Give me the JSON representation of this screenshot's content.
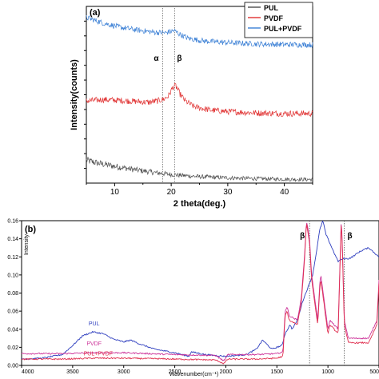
{
  "chart_data": [
    {
      "panel_label": "(a)",
      "type": "line",
      "xlabel": "2 theta(deg.)",
      "ylabel": "Intensity(counts)",
      "xlim": [
        5,
        45
      ],
      "x_ticks": [
        10,
        20,
        30,
        40
      ],
      "y_ticks_labeled": false,
      "legend": {
        "placement": "top-right"
      },
      "annotations": [
        {
          "text": "α",
          "x": 18.5
        },
        {
          "text": "β",
          "x": 20.6
        }
      ],
      "series": [
        {
          "name": "PUL",
          "color": "#4d4d4d",
          "x": [
            5,
            7,
            9,
            11,
            13,
            15,
            17,
            19,
            21,
            23,
            25,
            30,
            35,
            40,
            45
          ],
          "y": [
            0.82,
            0.72,
            0.64,
            0.57,
            0.5,
            0.44,
            0.38,
            0.33,
            0.29,
            0.26,
            0.23,
            0.19,
            0.16,
            0.14,
            0.13
          ]
        },
        {
          "name": "PVDF",
          "color": "#e03030",
          "x": [
            5,
            8,
            11,
            14,
            16,
            17.5,
            18.5,
            19.5,
            20.3,
            20.8,
            21.5,
            22.5,
            24,
            27,
            30,
            35,
            40,
            45
          ],
          "y": [
            2.95,
            3.0,
            2.97,
            2.93,
            2.9,
            2.95,
            3.0,
            3.12,
            3.45,
            3.5,
            3.22,
            2.95,
            2.75,
            2.62,
            2.57,
            2.52,
            2.5,
            2.5
          ]
        },
        {
          "name": "PUL+PVDF",
          "color": "#3a7fd5",
          "x": [
            5,
            8,
            11,
            14,
            17,
            19,
            20.5,
            21.5,
            23,
            26,
            30,
            35,
            40,
            45
          ],
          "y": [
            5.95,
            5.75,
            5.6,
            5.5,
            5.42,
            5.4,
            5.48,
            5.35,
            5.2,
            5.1,
            5.05,
            5.0,
            4.98,
            4.97
          ]
        }
      ]
    },
    {
      "panel_label": "(b)",
      "type": "line",
      "xlabel": "Wavenumber(cm⁻¹)",
      "ylabel": "Intensity",
      "xlim": [
        4000,
        500
      ],
      "ylim": [
        0,
        0.16
      ],
      "x_ticks": [
        4000,
        3500,
        3000,
        2500,
        2000,
        1500,
        1000,
        500
      ],
      "x_tick_labels": [
        "4000",
        "3500",
        "3000",
        "2500",
        "2000",
        "1500",
        "1000",
        "500"
      ],
      "y_ticks": [
        0,
        0.02,
        0.04,
        0.06,
        0.08,
        0.1,
        0.12,
        0.14,
        0.16
      ],
      "y_tick_labels": [
        "0.00",
        "0.02",
        "0.04",
        "0.06",
        "0.08",
        "0.10",
        "0.12",
        "0.14",
        "0.16"
      ],
      "annotations": [
        {
          "text": "β",
          "x": 1180
        },
        {
          "text": "β",
          "x": 840
        },
        {
          "text": "PUL",
          "x": 3290,
          "y": 0.044,
          "color": "#2f3fbf"
        },
        {
          "text": "PVDF",
          "x": 3290,
          "y": 0.022,
          "color": "#cc3399"
        },
        {
          "text": "PUL+PVDF",
          "x": 3250,
          "y": 0.011,
          "color": "#e03050"
        }
      ],
      "series": [
        {
          "name": "PUL",
          "color": "#2f3fbf",
          "x": [
            4000,
            3800,
            3600,
            3500,
            3400,
            3300,
            3200,
            3100,
            3000,
            2930,
            2850,
            2700,
            2500,
            2360,
            2340,
            2200,
            2100,
            2000,
            1900,
            1800,
            1700,
            1640,
            1550,
            1450,
            1420,
            1370,
            1350,
            1300,
            1250,
            1200,
            1150,
            1120,
            1080,
            1050,
            1020,
            1000,
            930,
            900,
            850,
            800,
            760,
            700,
            650,
            600,
            550,
            500
          ],
          "y": [
            0.007,
            0.008,
            0.012,
            0.022,
            0.033,
            0.037,
            0.035,
            0.029,
            0.026,
            0.028,
            0.024,
            0.018,
            0.014,
            0.01,
            0.015,
            0.012,
            0.011,
            0.01,
            0.011,
            0.012,
            0.018,
            0.028,
            0.018,
            0.022,
            0.035,
            0.045,
            0.04,
            0.05,
            0.07,
            0.085,
            0.1,
            0.12,
            0.15,
            0.16,
            0.145,
            0.14,
            0.122,
            0.115,
            0.118,
            0.118,
            0.12,
            0.125,
            0.128,
            0.13,
            0.125,
            0.12
          ]
        },
        {
          "name": "PVDF",
          "color": "#cc3399",
          "x": [
            4000,
            3600,
            3300,
            3000,
            2500,
            2100,
            2020,
            1980,
            1900,
            1700,
            1500,
            1440,
            1420,
            1400,
            1380,
            1300,
            1260,
            1230,
            1210,
            1180,
            1160,
            1100,
            1080,
            1070,
            1000,
            980,
            900,
            880,
            870,
            860,
            840,
            800,
            760,
            700,
            600,
            520,
            500
          ],
          "y": [
            0.013,
            0.013,
            0.014,
            0.014,
            0.012,
            0.011,
            0.005,
            0.012,
            0.012,
            0.012,
            0.013,
            0.015,
            0.06,
            0.065,
            0.055,
            0.05,
            0.075,
            0.12,
            0.16,
            0.14,
            0.1,
            0.05,
            0.09,
            0.1,
            0.04,
            0.05,
            0.04,
            0.12,
            0.16,
            0.14,
            0.05,
            0.03,
            0.03,
            0.03,
            0.03,
            0.05,
            0.095
          ]
        },
        {
          "name": "PUL+PVDF",
          "color": "#e03050",
          "x": [
            4000,
            3600,
            3300,
            3000,
            2500,
            2100,
            2020,
            1980,
            1900,
            1700,
            1500,
            1440,
            1420,
            1400,
            1380,
            1300,
            1260,
            1230,
            1210,
            1180,
            1160,
            1100,
            1080,
            1070,
            1000,
            980,
            900,
            880,
            870,
            860,
            840,
            800,
            760,
            700,
            600,
            520,
            500
          ],
          "y": [
            0.007,
            0.007,
            0.008,
            0.008,
            0.007,
            0.006,
            0.002,
            0.007,
            0.007,
            0.007,
            0.008,
            0.01,
            0.055,
            0.06,
            0.05,
            0.045,
            0.07,
            0.115,
            0.158,
            0.135,
            0.095,
            0.045,
            0.085,
            0.095,
            0.035,
            0.045,
            0.035,
            0.115,
            0.158,
            0.135,
            0.045,
            0.025,
            0.025,
            0.025,
            0.025,
            0.045,
            0.09
          ]
        }
      ],
      "vertical_markers": [
        1180,
        840
      ]
    }
  ]
}
